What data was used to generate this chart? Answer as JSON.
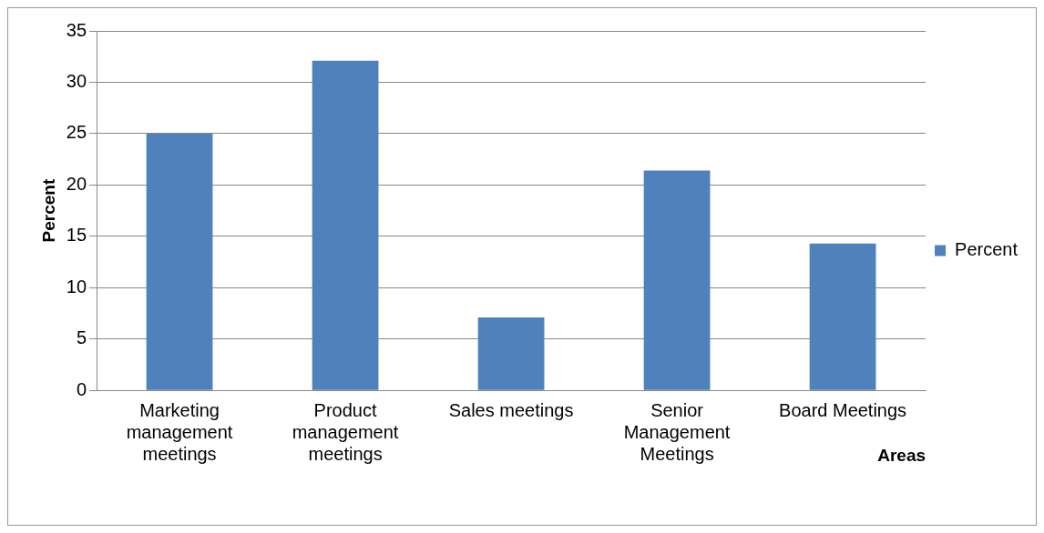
{
  "chart_data": {
    "type": "bar",
    "categories": [
      "Marketing management meetings",
      "Product management meetings",
      "Sales meetings",
      "Senior Management Meetings",
      "Board Meetings"
    ],
    "series": [
      {
        "name": "Percent",
        "color": "#4f81bd",
        "values": [
          25,
          32.1,
          7.1,
          21.4,
          14.3
        ]
      }
    ],
    "ylabel": "Percent",
    "xlabel": "Areas",
    "ylim": [
      0,
      35
    ],
    "yticks": [
      0,
      5,
      10,
      15,
      20,
      25,
      30,
      35
    ],
    "grid": "y",
    "legend": "right"
  }
}
